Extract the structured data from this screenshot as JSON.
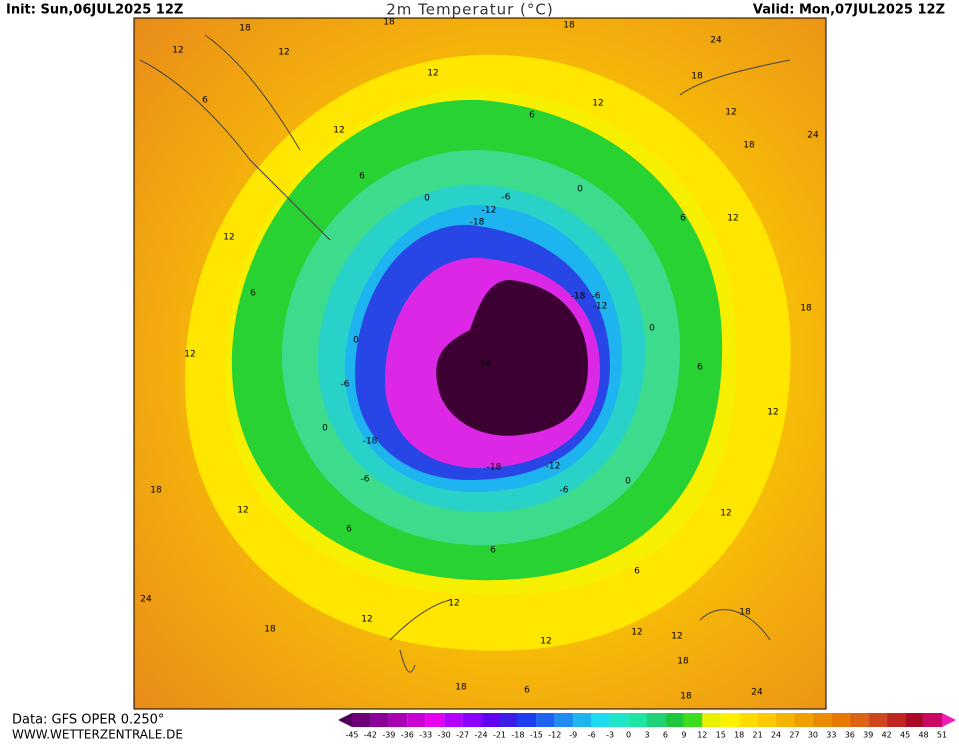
{
  "header": {
    "init": "Init: Sun,06JUL2025 12Z",
    "title": "2m Temperatur (°C)",
    "valid": "Valid: Mon,07JUL2025 12Z"
  },
  "map": {
    "contour_labels": [
      "12",
      "12",
      "12",
      "12",
      "12",
      "12",
      "12",
      "12",
      "12",
      "12",
      "12",
      "12",
      "12",
      "12",
      "12",
      "12",
      "12",
      "18",
      "18",
      "18",
      "18",
      "18",
      "18",
      "18",
      "18",
      "18",
      "18",
      "18",
      "18",
      "24",
      "24",
      "24",
      "24",
      "6",
      "6",
      "6",
      "6",
      "6",
      "6",
      "6",
      "6",
      "6",
      "6",
      "0",
      "0",
      "0",
      "0",
      "0",
      "0",
      "-6",
      "-6",
      "-6",
      "-6",
      "-6",
      "-12",
      "-12",
      "-12",
      "-18",
      "-18",
      "-18",
      "-18",
      "-54"
    ]
  },
  "legend": {
    "labels": [
      "-45",
      "-42",
      "-39",
      "-36",
      "-33",
      "-30",
      "-27",
      "-24",
      "-21",
      "-18",
      "-15",
      "-12",
      "-9",
      "-6",
      "-3",
      "0",
      "3",
      "6",
      "9",
      "12",
      "15",
      "18",
      "21",
      "24",
      "27",
      "30",
      "33",
      "36",
      "39",
      "42",
      "45",
      "48",
      "51"
    ],
    "colors": [
      "#50005a",
      "#6e0078",
      "#8c0096",
      "#aa00b4",
      "#c800d2",
      "#e600f0",
      "#b400ff",
      "#8c00ff",
      "#6400f0",
      "#3c1ee6",
      "#1e3cf0",
      "#1e64f0",
      "#1e8cf0",
      "#1eb4f0",
      "#1edcf0",
      "#1ee6c8",
      "#1ee6a0",
      "#1ed278",
      "#1ec83c",
      "#3cdc1e",
      "#e6f000",
      "#fff000",
      "#ffdc00",
      "#ffc800",
      "#f5b400",
      "#f0a000",
      "#eb8c00",
      "#e67800",
      "#dc6414",
      "#d2461e",
      "#be281e",
      "#aa0a28",
      "#c80a64",
      "#f01eb4"
    ]
  },
  "footer": {
    "data": "Data: GFS OPER 0.250°",
    "site": "WWW.WETTERZENTRALE.DE"
  }
}
